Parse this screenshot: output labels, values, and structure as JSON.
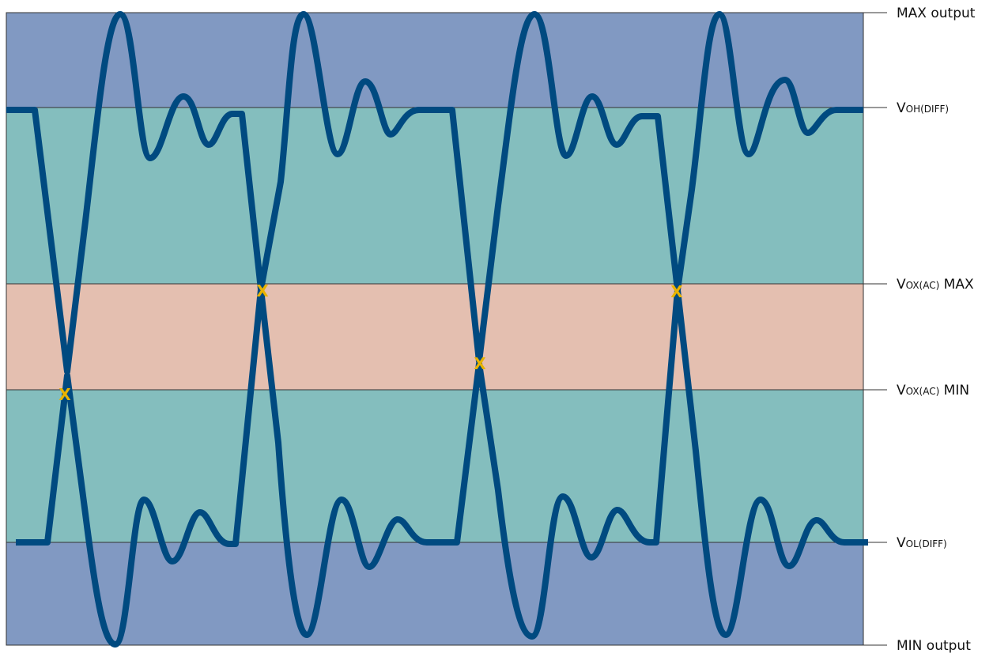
{
  "colors": {
    "outer_band": "#8199c2",
    "mid_band": "#84bebe",
    "cross_band": "#e4bfb0",
    "signal": "#004a80",
    "marker": "#e8b300",
    "line": "#333333"
  },
  "levels": [
    {
      "id": "max-output",
      "main": "MAX output",
      "sub": "",
      "tail": ""
    },
    {
      "id": "voh-diff",
      "main": "V",
      "sub": "OH(DIFF)",
      "tail": ""
    },
    {
      "id": "vox-ac-max",
      "main": "V",
      "sub": "OX(AC)",
      "tail": " MAX"
    },
    {
      "id": "vox-ac-min",
      "main": "V",
      "sub": "OX(AC)",
      "tail": " MIN"
    },
    {
      "id": "vol-diff",
      "main": "V",
      "sub": "OL(DIFF)",
      "tail": ""
    },
    {
      "id": "min-output",
      "main": "MIN output",
      "sub": "",
      "tail": ""
    }
  ],
  "marker_glyph": "X"
}
